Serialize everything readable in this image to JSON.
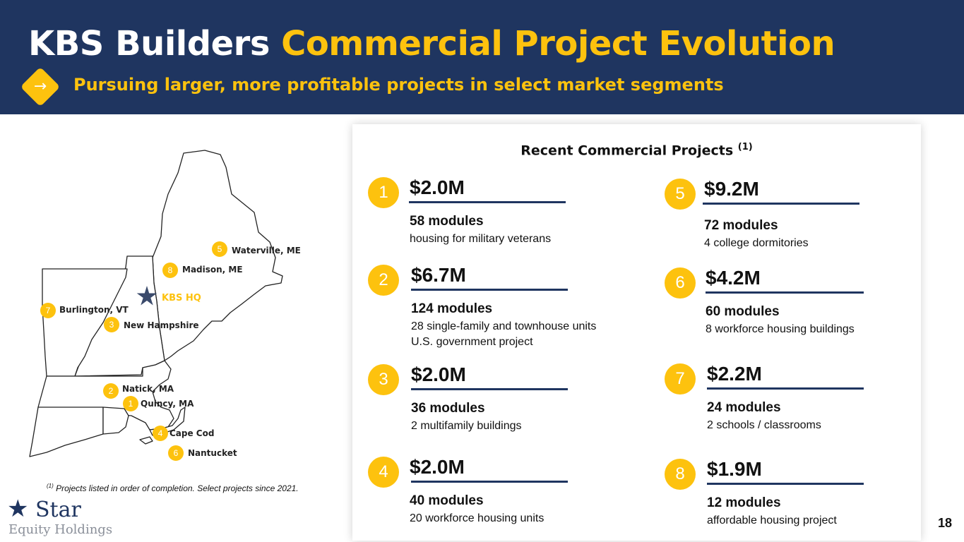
{
  "header": {
    "title_white": "KBS Builders ",
    "title_gold": "Commercial Project Evolution",
    "arrow_icon": "→",
    "subtitle": "Pursuing larger, more profitable projects in select market segments",
    "colors": {
      "navy": "#1f3560",
      "gold": "#fdc20e"
    }
  },
  "map": {
    "hq_label": "KBS HQ",
    "locations": [
      {
        "num": "5",
        "label": "Waterville, ME"
      },
      {
        "num": "8",
        "label": "Madison, ME"
      },
      {
        "num": "7",
        "label": "Burlington, VT"
      },
      {
        "num": "3",
        "label": "New Hampshire"
      },
      {
        "num": "2",
        "label": "Natick, MA"
      },
      {
        "num": "1",
        "label": "Quincy, MA"
      },
      {
        "num": "4",
        "label": "Cape Cod"
      },
      {
        "num": "6",
        "label": "Nantucket"
      }
    ]
  },
  "footnote": {
    "marker": "(1)",
    "text": " Projects listed in order of completion. Select projects since 2021."
  },
  "logo": {
    "star_icon": "★",
    "name": "Star",
    "sub": "Equity Holdings"
  },
  "page_number": "18",
  "projects_card": {
    "title": "Recent Commercial Projects ",
    "title_marker": "(1)",
    "projects": [
      {
        "num": "1",
        "amount": "$2.0M",
        "modules": "58 modules",
        "desc": [
          "housing for military veterans"
        ]
      },
      {
        "num": "2",
        "amount": "$6.7M",
        "modules": "124 modules",
        "desc": [
          "28 single-family and townhouse units",
          "U.S. government project"
        ]
      },
      {
        "num": "3",
        "amount": "$2.0M",
        "modules": "36 modules",
        "desc": [
          "2 multifamily buildings"
        ]
      },
      {
        "num": "4",
        "amount": "$2.0M",
        "modules": "40 modules",
        "desc": [
          "20 workforce housing units"
        ]
      },
      {
        "num": "5",
        "amount": "$9.2M",
        "modules": "72 modules",
        "desc": [
          "4 college dormitories"
        ]
      },
      {
        "num": "6",
        "amount": "$4.2M",
        "modules": "60 modules",
        "desc": [
          "8 workforce housing buildings"
        ]
      },
      {
        "num": "7",
        "amount": "$2.2M",
        "modules": "24 modules",
        "desc": [
          "2 schools / classrooms"
        ]
      },
      {
        "num": "8",
        "amount": "$1.9M",
        "modules": "12 modules",
        "desc": [
          "affordable housing project"
        ]
      }
    ]
  }
}
